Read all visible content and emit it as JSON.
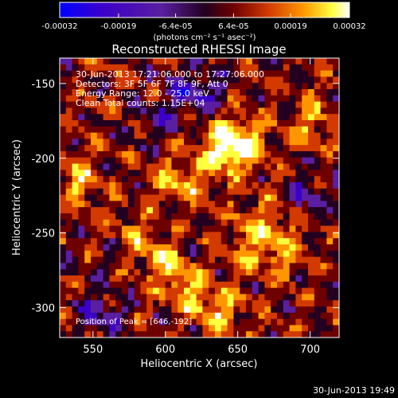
{
  "colorbar": {
    "tick_labels": [
      "-0.00032",
      "-0.00019",
      "-6.4e-05",
      "6.4e-05",
      "0.00019",
      "0.00032"
    ],
    "unit_label": "(photons cm⁻² s⁻¹ asec⁻²)",
    "range": [
      -0.00032,
      0.00032
    ],
    "colors": [
      "#0000ff",
      "#3b00c8",
      "#5a1fa0",
      "#240020",
      "#6e0000",
      "#d23a00",
      "#ff9600",
      "#ffff40",
      "#ffffff"
    ]
  },
  "chart_data": {
    "type": "heatmap",
    "title": "Reconstructed RHESSI Image",
    "xlabel": "Heliocentric X (arcsec)",
    "ylabel": "Heliocentric Y (arcsec)",
    "xlim": [
      527,
      720
    ],
    "ylim": [
      -320,
      -133
    ],
    "x_ticks": [
      550,
      600,
      650,
      700
    ],
    "y_ticks": [
      -150,
      -200,
      -250,
      -300
    ],
    "annotations": [
      "30-Jun-2013 17:21:06.000 to 17:27:06.000",
      "Detectors: 3F 5F 6F 7F 8F 9F, Att 0",
      "Energy Range: 12.0 - 25.0 keV",
      "Clean     Total counts: 1.15E+04"
    ],
    "peak_label": "Position of Peak = [646,-192]",
    "peak": [
      646,
      -192
    ],
    "grid": false
  },
  "footer_timestamp": "30-Jun-2013 19:49"
}
